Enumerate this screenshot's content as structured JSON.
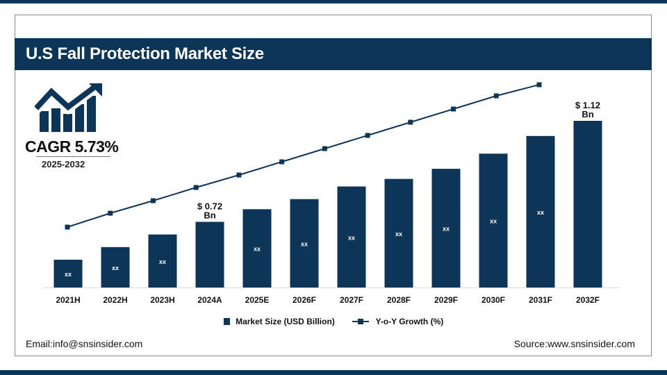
{
  "title": "U.S Fall Protection Market Size",
  "cagr": {
    "label": "CAGR 5.73%",
    "period": "2025-2032",
    "icon": "growth-chart-arrow-icon"
  },
  "footer": {
    "email": "Email:info@snsinsider.com",
    "source": "Source:www.snsinsider.com"
  },
  "colors": {
    "primary": "#0d3557",
    "text": "#111111"
  },
  "chart_data": {
    "type": "bar",
    "categories": [
      "2021H",
      "2022H",
      "2023H",
      "2024A",
      "2025E",
      "2026F",
      "2027F",
      "2028F",
      "2029F",
      "2030F",
      "2031F",
      "2032F"
    ],
    "series": [
      {
        "name": "Market Size (USD Billion)",
        "type": "bar",
        "values": [
          0.57,
          0.62,
          0.67,
          0.72,
          0.77,
          0.81,
          0.86,
          0.89,
          0.93,
          0.99,
          1.06,
          1.12
        ],
        "labels": [
          "xx",
          "xx",
          "xx",
          "",
          "xx",
          "xx",
          "xx",
          "xx",
          "xx",
          "xx",
          "xx",
          ""
        ]
      },
      {
        "name": "Y-o-Y Growth (%)",
        "type": "line",
        "values": [
          87,
          107,
          125,
          144,
          162,
          181,
          200,
          219,
          238,
          257,
          276,
          292
        ]
      }
    ],
    "callouts": [
      {
        "category": "2024A",
        "line1": "$ 0.72",
        "line2": "Bn"
      },
      {
        "category": "2032F",
        "line1": "$ 1.12",
        "line2": "Bn"
      }
    ],
    "ylim": [
      0.46,
      1.2
    ],
    "line_ylim": [
      0,
      300
    ],
    "grid": false,
    "legend": "bottom-center"
  }
}
